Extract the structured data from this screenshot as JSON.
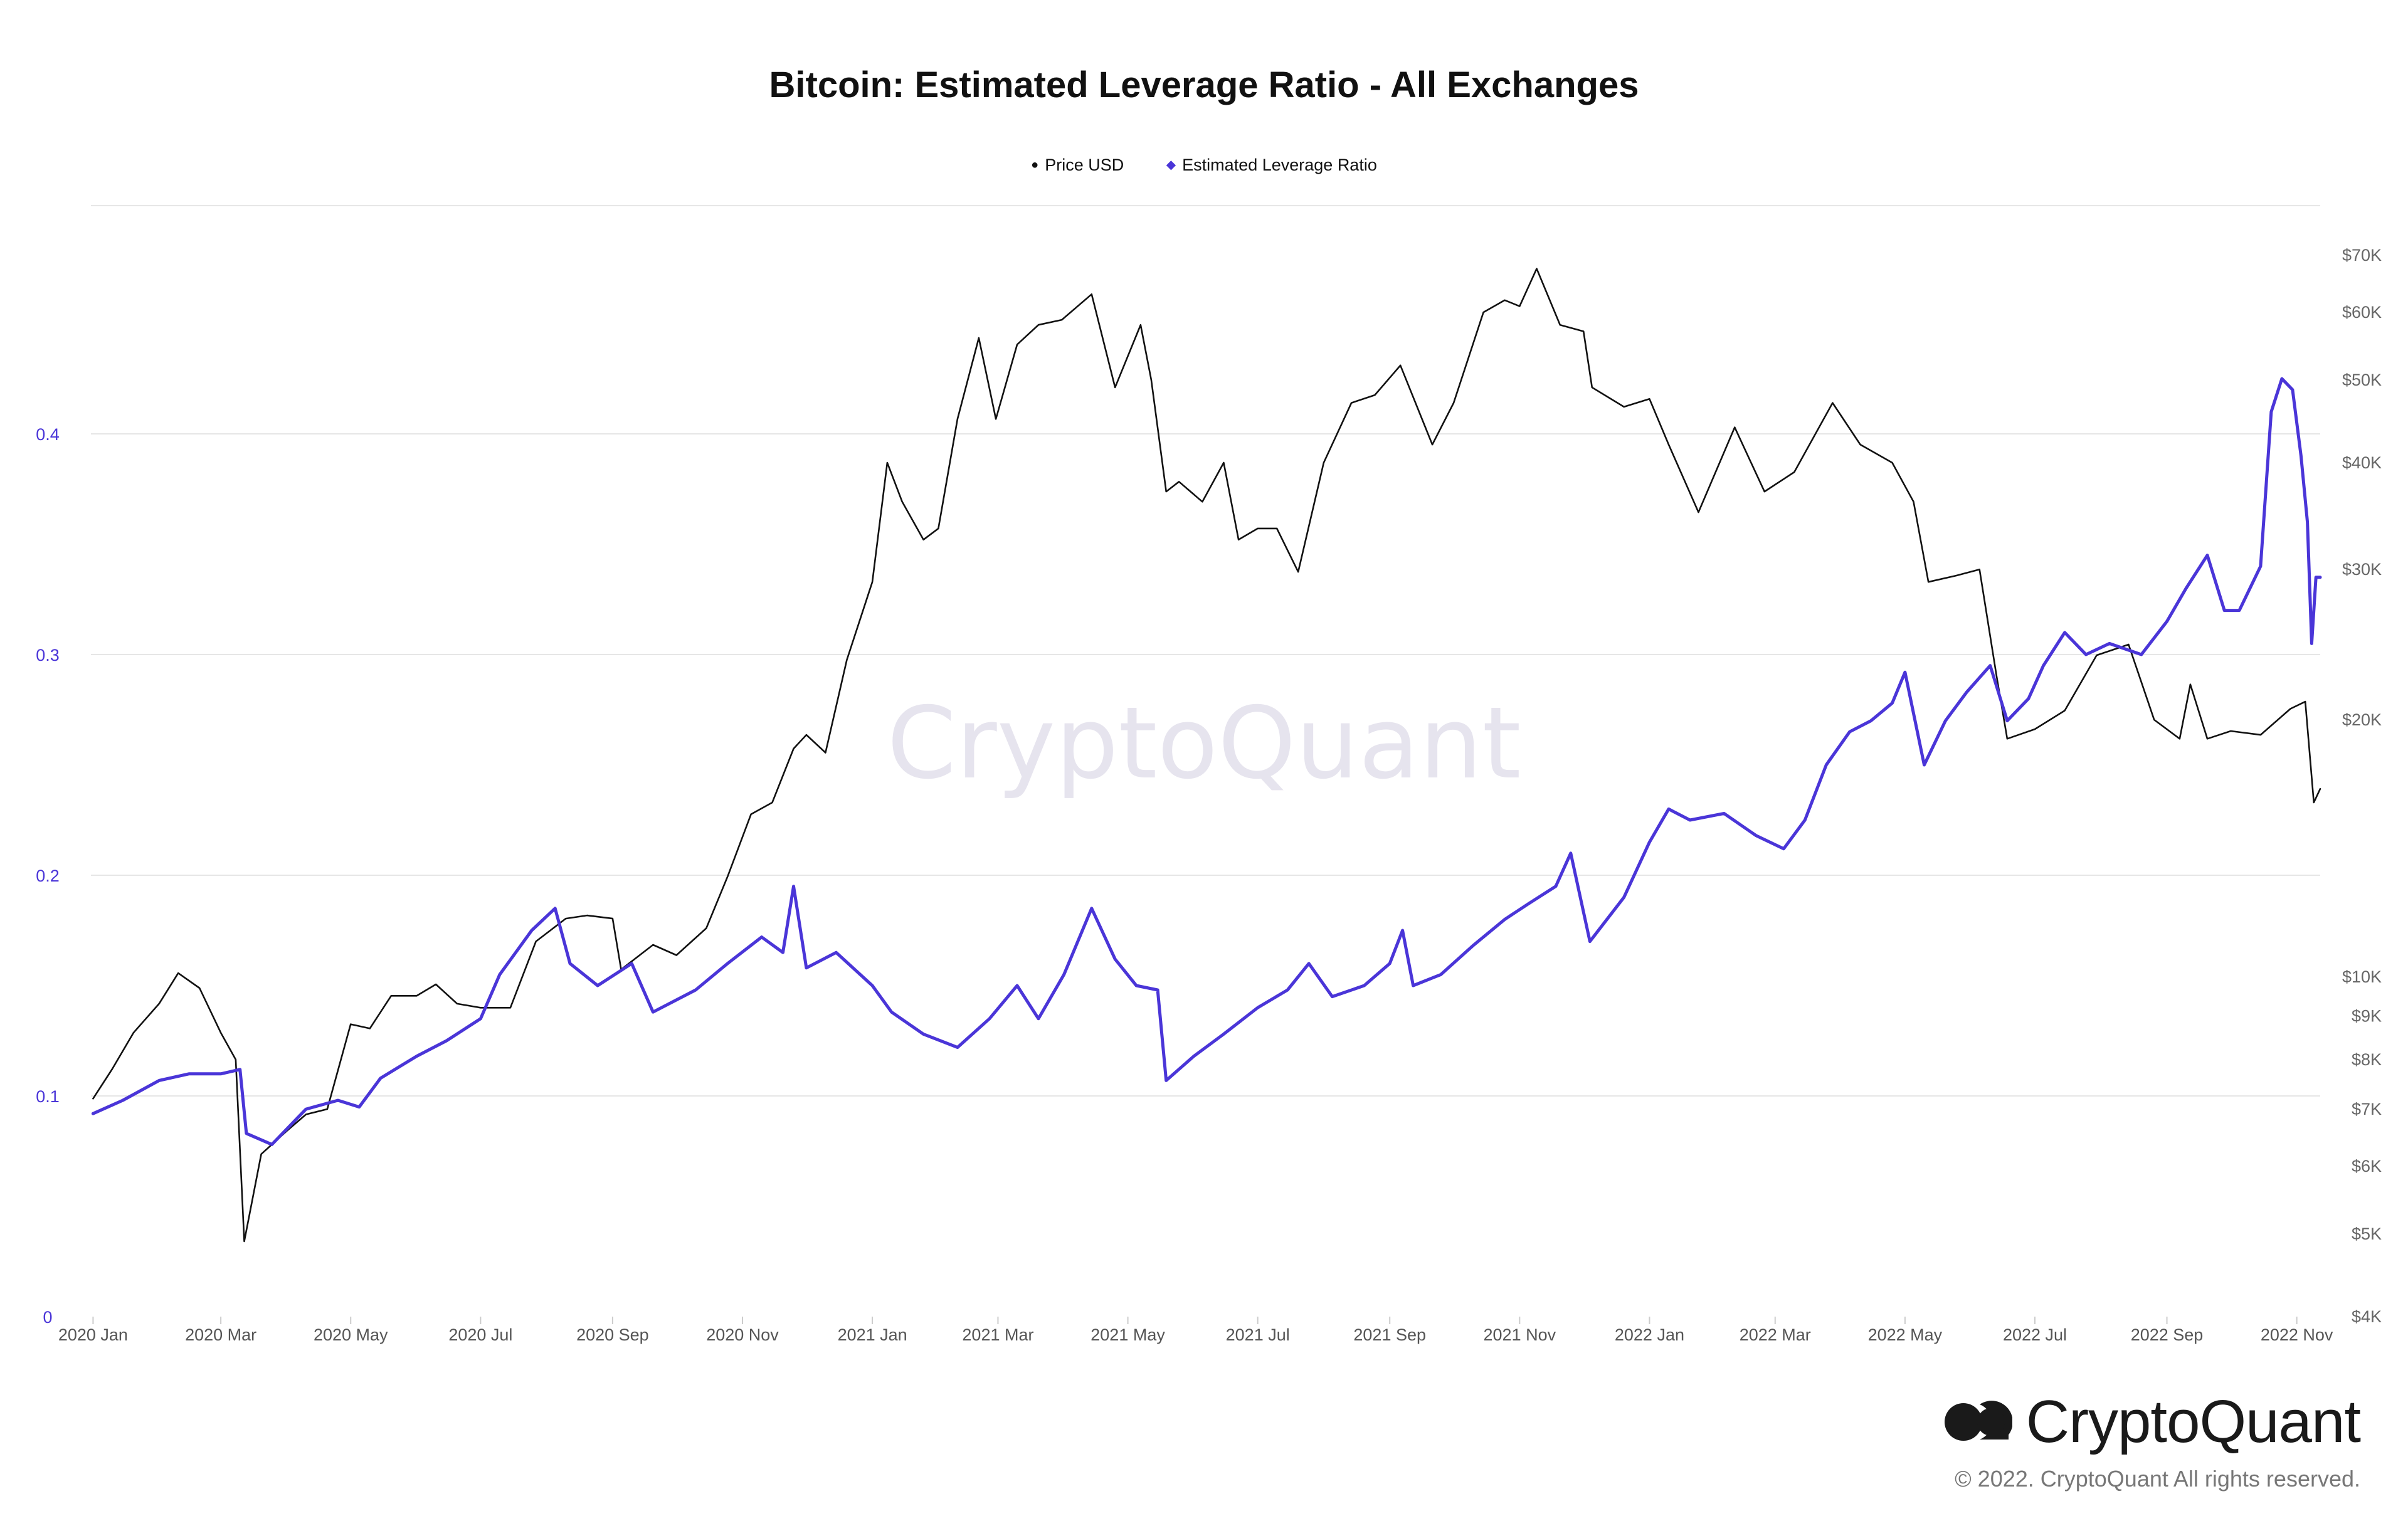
{
  "title": "Bitcoin: Estimated Leverage Ratio - All Exchanges",
  "watermark": "CryptoQuant",
  "brand": {
    "name": "CryptoQuant",
    "copyright": "© 2022. CryptoQuant All rights reserved."
  },
  "colors": {
    "price": "#111111",
    "leverage": "#4a35d8",
    "grid": "#e6e6e6",
    "left_axis": "#4a35d8",
    "right_axis": "#666666",
    "watermark": "#e6e4ee"
  },
  "chart_data": {
    "type": "line",
    "title": "Bitcoin: Estimated Leverage Ratio - All Exchanges",
    "legend_position": "top-center",
    "grid": true,
    "x_range": [
      "2019-12-31",
      "2022-11-12"
    ],
    "x_ticks": [
      {
        "date": "2020-01-01",
        "label": "2020 Jan"
      },
      {
        "date": "2020-03-01",
        "label": "2020 Mar"
      },
      {
        "date": "2020-05-01",
        "label": "2020 May"
      },
      {
        "date": "2020-07-01",
        "label": "2020 Jul"
      },
      {
        "date": "2020-09-01",
        "label": "2020 Sep"
      },
      {
        "date": "2020-11-01",
        "label": "2020 Nov"
      },
      {
        "date": "2021-01-01",
        "label": "2021 Jan"
      },
      {
        "date": "2021-03-01",
        "label": "2021 Mar"
      },
      {
        "date": "2021-05-01",
        "label": "2021 May"
      },
      {
        "date": "2021-07-01",
        "label": "2021 Jul"
      },
      {
        "date": "2021-09-01",
        "label": "2021 Sep"
      },
      {
        "date": "2021-11-01",
        "label": "2021 Nov"
      },
      {
        "date": "2022-01-01",
        "label": "2022 Jan"
      },
      {
        "date": "2022-03-01",
        "label": "2022 Mar"
      },
      {
        "date": "2022-05-01",
        "label": "2022 May"
      },
      {
        "date": "2022-07-01",
        "label": "2022 Jul"
      },
      {
        "date": "2022-09-01",
        "label": "2022 Sep"
      },
      {
        "date": "2022-11-01",
        "label": "2022 Nov"
      }
    ],
    "y_left": {
      "min": 0,
      "max": 0.5,
      "scale": "linear",
      "ticks": [
        {
          "value": 0,
          "label": "0"
        },
        {
          "value": 0.1,
          "label": "0.1"
        },
        {
          "value": 0.2,
          "label": "0.2"
        },
        {
          "value": 0.3,
          "label": "0.3"
        },
        {
          "value": 0.4,
          "label": "0.4"
        }
      ]
    },
    "y_right": {
      "min": 4000,
      "max": 90000,
      "scale": "log",
      "ticks": [
        {
          "value": 4000,
          "label": "$4K"
        },
        {
          "value": 5000,
          "label": "$5K"
        },
        {
          "value": 6000,
          "label": "$6K"
        },
        {
          "value": 7000,
          "label": "$7K"
        },
        {
          "value": 8000,
          "label": "$8K"
        },
        {
          "value": 9000,
          "label": "$9K"
        },
        {
          "value": 10000,
          "label": "$10K"
        },
        {
          "value": 20000,
          "label": "$20K"
        },
        {
          "value": 30000,
          "label": "$30K"
        },
        {
          "value": 40000,
          "label": "$40K"
        },
        {
          "value": 50000,
          "label": "$50K"
        },
        {
          "value": 60000,
          "label": "$60K"
        },
        {
          "value": 70000,
          "label": "$70K"
        }
      ]
    },
    "series": [
      {
        "name": "Price USD",
        "axis": "right",
        "color": "#111111",
        "points": [
          [
            "2020-01-01",
            7200
          ],
          [
            "2020-01-10",
            7800
          ],
          [
            "2020-01-20",
            8600
          ],
          [
            "2020-02-01",
            9300
          ],
          [
            "2020-02-10",
            10100
          ],
          [
            "2020-02-20",
            9700
          ],
          [
            "2020-03-01",
            8600
          ],
          [
            "2020-03-08",
            8000
          ],
          [
            "2020-03-12",
            4900
          ],
          [
            "2020-03-20",
            6200
          ],
          [
            "2020-04-01",
            6600
          ],
          [
            "2020-04-10",
            6900
          ],
          [
            "2020-04-20",
            7000
          ],
          [
            "2020-05-01",
            8800
          ],
          [
            "2020-05-10",
            8700
          ],
          [
            "2020-05-20",
            9500
          ],
          [
            "2020-06-01",
            9500
          ],
          [
            "2020-06-10",
            9800
          ],
          [
            "2020-06-20",
            9300
          ],
          [
            "2020-07-01",
            9200
          ],
          [
            "2020-07-15",
            9200
          ],
          [
            "2020-07-27",
            11000
          ],
          [
            "2020-08-10",
            11700
          ],
          [
            "2020-08-20",
            11800
          ],
          [
            "2020-09-01",
            11700
          ],
          [
            "2020-09-05",
            10200
          ],
          [
            "2020-09-20",
            10900
          ],
          [
            "2020-10-01",
            10600
          ],
          [
            "2020-10-15",
            11400
          ],
          [
            "2020-10-25",
            13100
          ],
          [
            "2020-11-05",
            15500
          ],
          [
            "2020-11-15",
            16000
          ],
          [
            "2020-11-25",
            18500
          ],
          [
            "2020-12-01",
            19200
          ],
          [
            "2020-12-10",
            18300
          ],
          [
            "2020-12-20",
            23500
          ],
          [
            "2021-01-01",
            29000
          ],
          [
            "2021-01-08",
            40000
          ],
          [
            "2021-01-15",
            36000
          ],
          [
            "2021-01-25",
            32500
          ],
          [
            "2021-02-01",
            33500
          ],
          [
            "2021-02-10",
            45000
          ],
          [
            "2021-02-20",
            56000
          ],
          [
            "2021-02-28",
            45000
          ],
          [
            "2021-03-10",
            55000
          ],
          [
            "2021-03-20",
            58000
          ],
          [
            "2021-03-31",
            58800
          ],
          [
            "2021-04-14",
            63000
          ],
          [
            "2021-04-25",
            49000
          ],
          [
            "2021-05-07",
            58000
          ],
          [
            "2021-05-12",
            50000
          ],
          [
            "2021-05-19",
            37000
          ],
          [
            "2021-05-25",
            38000
          ],
          [
            "2021-06-05",
            36000
          ],
          [
            "2021-06-15",
            40000
          ],
          [
            "2021-06-22",
            32500
          ],
          [
            "2021-07-01",
            33500
          ],
          [
            "2021-07-10",
            33500
          ],
          [
            "2021-07-20",
            29800
          ],
          [
            "2021-08-01",
            40000
          ],
          [
            "2021-08-14",
            47000
          ],
          [
            "2021-08-25",
            48000
          ],
          [
            "2021-09-06",
            52000
          ],
          [
            "2021-09-21",
            42000
          ],
          [
            "2021-10-01",
            47000
          ],
          [
            "2021-10-15",
            60000
          ],
          [
            "2021-10-25",
            62000
          ],
          [
            "2021-11-01",
            61000
          ],
          [
            "2021-11-09",
            67500
          ],
          [
            "2021-11-20",
            58000
          ],
          [
            "2021-12-01",
            57000
          ],
          [
            "2021-12-05",
            49000
          ],
          [
            "2021-12-20",
            46500
          ],
          [
            "2022-01-01",
            47500
          ],
          [
            "2022-01-10",
            42000
          ],
          [
            "2022-01-24",
            35000
          ],
          [
            "2022-02-10",
            44000
          ],
          [
            "2022-02-24",
            37000
          ],
          [
            "2022-03-10",
            39000
          ],
          [
            "2022-03-28",
            47000
          ],
          [
            "2022-04-10",
            42000
          ],
          [
            "2022-04-25",
            40000
          ],
          [
            "2022-05-05",
            36000
          ],
          [
            "2022-05-12",
            29000
          ],
          [
            "2022-05-25",
            29500
          ],
          [
            "2022-06-05",
            30000
          ],
          [
            "2022-06-13",
            22500
          ],
          [
            "2022-06-18",
            19000
          ],
          [
            "2022-07-01",
            19500
          ],
          [
            "2022-07-15",
            20500
          ],
          [
            "2022-07-30",
            23800
          ],
          [
            "2022-08-14",
            24500
          ],
          [
            "2022-08-26",
            20000
          ],
          [
            "2022-09-07",
            19000
          ],
          [
            "2022-09-12",
            22000
          ],
          [
            "2022-09-20",
            19000
          ],
          [
            "2022-10-01",
            19400
          ],
          [
            "2022-10-15",
            19200
          ],
          [
            "2022-10-29",
            20600
          ],
          [
            "2022-11-05",
            21000
          ],
          [
            "2022-11-09",
            16000
          ],
          [
            "2022-11-12",
            16600
          ]
        ]
      },
      {
        "name": "Estimated Leverage Ratio",
        "axis": "left",
        "color": "#4a35d8",
        "points": [
          [
            "2020-01-01",
            0.092
          ],
          [
            "2020-01-15",
            0.098
          ],
          [
            "2020-02-01",
            0.107
          ],
          [
            "2020-02-15",
            0.11
          ],
          [
            "2020-03-01",
            0.11
          ],
          [
            "2020-03-10",
            0.112
          ],
          [
            "2020-03-13",
            0.083
          ],
          [
            "2020-03-25",
            0.078
          ],
          [
            "2020-04-10",
            0.094
          ],
          [
            "2020-04-25",
            0.098
          ],
          [
            "2020-05-05",
            0.095
          ],
          [
            "2020-05-15",
            0.108
          ],
          [
            "2020-06-01",
            0.118
          ],
          [
            "2020-06-15",
            0.125
          ],
          [
            "2020-07-01",
            0.135
          ],
          [
            "2020-07-10",
            0.155
          ],
          [
            "2020-07-25",
            0.175
          ],
          [
            "2020-08-05",
            0.185
          ],
          [
            "2020-08-12",
            0.16
          ],
          [
            "2020-08-25",
            0.15
          ],
          [
            "2020-09-10",
            0.16
          ],
          [
            "2020-09-20",
            0.138
          ],
          [
            "2020-10-10",
            0.148
          ],
          [
            "2020-10-25",
            0.16
          ],
          [
            "2020-11-10",
            0.172
          ],
          [
            "2020-11-20",
            0.165
          ],
          [
            "2020-11-25",
            0.195
          ],
          [
            "2020-12-01",
            0.158
          ],
          [
            "2020-12-15",
            0.165
          ],
          [
            "2021-01-01",
            0.15
          ],
          [
            "2021-01-10",
            0.138
          ],
          [
            "2021-01-25",
            0.128
          ],
          [
            "2021-02-10",
            0.122
          ],
          [
            "2021-02-25",
            0.135
          ],
          [
            "2021-03-10",
            0.15
          ],
          [
            "2021-03-20",
            0.135
          ],
          [
            "2021-04-01",
            0.155
          ],
          [
            "2021-04-14",
            0.185
          ],
          [
            "2021-04-25",
            0.162
          ],
          [
            "2021-05-05",
            0.15
          ],
          [
            "2021-05-15",
            0.148
          ],
          [
            "2021-05-19",
            0.107
          ],
          [
            "2021-06-01",
            0.118
          ],
          [
            "2021-06-15",
            0.128
          ],
          [
            "2021-07-01",
            0.14
          ],
          [
            "2021-07-15",
            0.148
          ],
          [
            "2021-07-25",
            0.16
          ],
          [
            "2021-08-05",
            0.145
          ],
          [
            "2021-08-20",
            0.15
          ],
          [
            "2021-09-01",
            0.16
          ],
          [
            "2021-09-07",
            0.175
          ],
          [
            "2021-09-12",
            0.15
          ],
          [
            "2021-09-25",
            0.155
          ],
          [
            "2021-10-10",
            0.168
          ],
          [
            "2021-10-25",
            0.18
          ],
          [
            "2021-11-05",
            0.187
          ],
          [
            "2021-11-18",
            0.195
          ],
          [
            "2021-11-25",
            0.21
          ],
          [
            "2021-12-04",
            0.17
          ],
          [
            "2021-12-20",
            0.19
          ],
          [
            "2022-01-01",
            0.215
          ],
          [
            "2022-01-10",
            0.23
          ],
          [
            "2022-01-20",
            0.225
          ],
          [
            "2022-02-05",
            0.228
          ],
          [
            "2022-02-20",
            0.218
          ],
          [
            "2022-03-05",
            0.212
          ],
          [
            "2022-03-15",
            0.225
          ],
          [
            "2022-03-25",
            0.25
          ],
          [
            "2022-04-05",
            0.265
          ],
          [
            "2022-04-15",
            0.27
          ],
          [
            "2022-04-25",
            0.278
          ],
          [
            "2022-05-01",
            0.292
          ],
          [
            "2022-05-10",
            0.25
          ],
          [
            "2022-05-20",
            0.27
          ],
          [
            "2022-05-30",
            0.283
          ],
          [
            "2022-06-10",
            0.295
          ],
          [
            "2022-06-18",
            0.27
          ],
          [
            "2022-06-28",
            0.28
          ],
          [
            "2022-07-05",
            0.295
          ],
          [
            "2022-07-15",
            0.31
          ],
          [
            "2022-07-25",
            0.3
          ],
          [
            "2022-08-05",
            0.305
          ],
          [
            "2022-08-20",
            0.3
          ],
          [
            "2022-09-01",
            0.315
          ],
          [
            "2022-09-10",
            0.33
          ],
          [
            "2022-09-20",
            0.345
          ],
          [
            "2022-09-28",
            0.32
          ],
          [
            "2022-10-05",
            0.32
          ],
          [
            "2022-10-15",
            0.34
          ],
          [
            "2022-10-20",
            0.41
          ],
          [
            "2022-10-25",
            0.425
          ],
          [
            "2022-10-30",
            0.42
          ],
          [
            "2022-11-03",
            0.39
          ],
          [
            "2022-11-06",
            0.36
          ],
          [
            "2022-11-08",
            0.305
          ],
          [
            "2022-11-10",
            0.335
          ],
          [
            "2022-11-12",
            0.335
          ]
        ]
      }
    ]
  }
}
